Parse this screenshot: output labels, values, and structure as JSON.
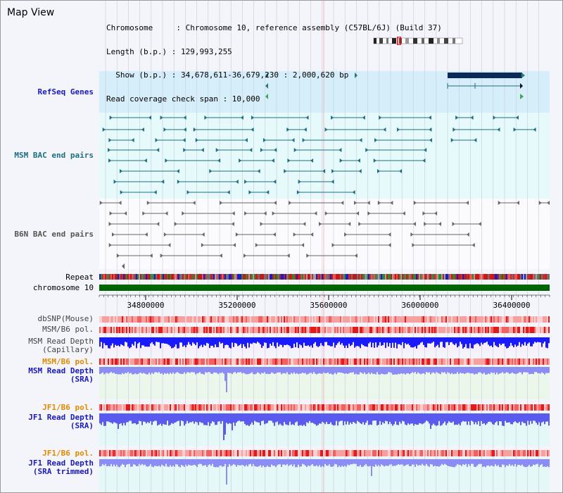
{
  "header": {
    "title": "Map View",
    "info_lines": [
      "Chromosome     : Chromosome 10, reference assembly (C57BL/6J) (Build 37)",
      "Length (b.p.) : 129,993,255",
      "  Show (b.p.) : 34,678,611-36,679,230 : 2,000,620 bp",
      "Read coverage check span : 10,000"
    ]
  },
  "axis": {
    "tick_labels": [
      "34800000",
      "35200000",
      "35600000",
      "36000000",
      "36400000"
    ]
  },
  "tracks": {
    "refseq": {
      "label": "RefSeq Genes",
      "color": "#1a1ab5"
    },
    "msm_bac": {
      "label": "MSM BAC end pairs",
      "color": "#1d6f80"
    },
    "b6n_bac": {
      "label": "B6N BAC end pairs",
      "color": "#555555"
    },
    "repeat": {
      "label": "Repeat"
    },
    "chromosome": {
      "label": "chromosome 10",
      "color": "#006400"
    },
    "dbsnp": {
      "label": "dbSNP(Mouse)"
    },
    "msm_b6_pol_1": {
      "label": "MSM/B6 pol."
    },
    "msm_depth_cap": {
      "label_line1": "MSM Read Depth",
      "label_line2": "(Capillary)"
    },
    "msm_b6_pol_2": {
      "label": "MSM/B6 pol.",
      "color": "#e08a00"
    },
    "msm_depth_sra": {
      "label_line1": "MSM Read Depth",
      "label_line2": "(SRA)"
    },
    "jf1_b6_pol_1": {
      "label": "JF1/B6 pol.",
      "color": "#e08a00"
    },
    "jf1_depth_sra": {
      "label_line1": "JF1 Read Depth",
      "label_line2": "(SRA)"
    },
    "jf1_b6_pol_2": {
      "label": "JF1/B6 pol.",
      "color": "#e08a00"
    },
    "jf1_depth_trim": {
      "label_line1": "JF1 Read Depth",
      "label_line2": "(SRA trimmed)"
    }
  },
  "colors": {
    "panel_bg": "#f4f4fb",
    "refseq_bg": "#d6eef9",
    "bac_bg": "#e6f9fb",
    "depth_blue": "#1a1aff",
    "depth_blue_light": "#8c8cf5",
    "pol_red": "#f24040",
    "pol_pale": "#f8c8c8"
  }
}
